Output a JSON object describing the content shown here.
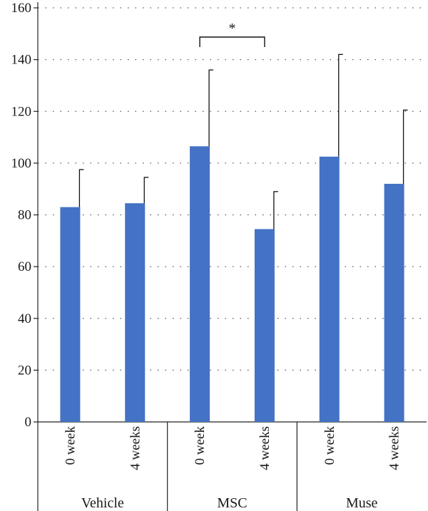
{
  "chart_data": {
    "type": "bar",
    "groups": [
      {
        "name": "Vehicle",
        "categories": [
          "0 week",
          "4 weeks"
        ]
      },
      {
        "name": "MSC",
        "categories": [
          "0 week",
          "4 weeks"
        ]
      },
      {
        "name": "Muse",
        "categories": [
          "0 week",
          "4 weeks"
        ]
      }
    ],
    "series": [
      {
        "values": [
          83,
          84.5,
          106.5,
          74.5,
          102.5,
          92
        ],
        "error_upper": [
          97.5,
          94.5,
          136,
          89,
          142,
          120.5
        ]
      }
    ],
    "ylim": [
      0,
      160
    ],
    "yticks": [
      "0",
      "20",
      "40",
      "60",
      "80",
      "100",
      "120",
      "140",
      "160"
    ],
    "grid": true,
    "bar_color": "#4472c4",
    "significance": [
      {
        "from_bar": 2,
        "to_bar": 3,
        "label": "*"
      }
    ]
  }
}
